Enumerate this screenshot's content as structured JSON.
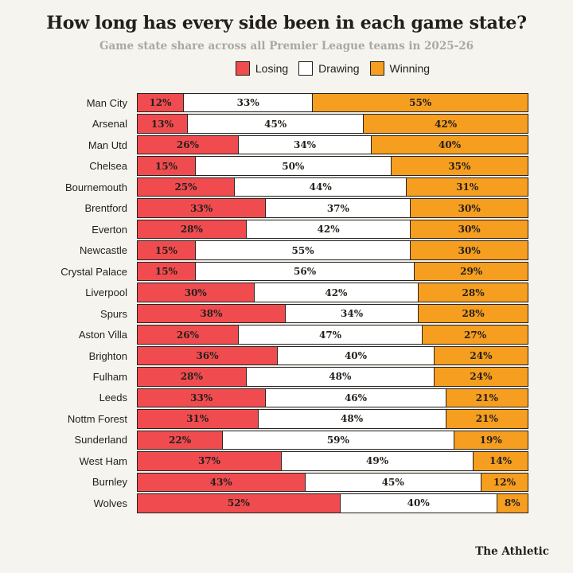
{
  "page": {
    "background": "#F5F4EE"
  },
  "header": {
    "title": "How long has every side been in each game state?",
    "subtitle": "Game state share across all Premier League teams in 2025-26"
  },
  "legend": {
    "items": [
      {
        "label": "Losing",
        "color": "#F04C50"
      },
      {
        "label": "Drawing",
        "color": "#FFFFFF"
      },
      {
        "label": "Winning",
        "color": "#F59E1F"
      }
    ]
  },
  "footer": {
    "brand": "The Athletic"
  },
  "chart_data": {
    "type": "bar",
    "stacked": true,
    "orientation": "horizontal",
    "title": "How long has every side been in each game state?",
    "subtitle": "Game state share across all Premier League teams in 2025-26",
    "value_suffix": "%",
    "xlim": [
      0,
      100
    ],
    "grid": false,
    "legend_position": "top",
    "categories": [
      "Man City",
      "Arsenal",
      "Man Utd",
      "Chelsea",
      "Bournemouth",
      "Brentford",
      "Everton",
      "Newcastle",
      "Crystal Palace",
      "Liverpool",
      "Spurs",
      "Aston Villa",
      "Brighton",
      "Fulham",
      "Leeds",
      "Nottm Forest",
      "Sunderland",
      "West Ham",
      "Burnley",
      "Wolves"
    ],
    "series": [
      {
        "name": "Losing",
        "color": "#F04C50",
        "text_color": "#231F1C",
        "values": [
          12,
          13,
          26,
          15,
          25,
          33,
          28,
          15,
          15,
          30,
          38,
          26,
          36,
          28,
          33,
          31,
          22,
          37,
          43,
          52
        ]
      },
      {
        "name": "Drawing",
        "color": "#FFFFFF",
        "text_color": "#231F1C",
        "values": [
          33,
          45,
          34,
          50,
          44,
          37,
          42,
          55,
          56,
          42,
          34,
          47,
          40,
          48,
          46,
          48,
          59,
          49,
          45,
          40
        ]
      },
      {
        "name": "Winning",
        "color": "#F59E1F",
        "text_color": "#231F1C",
        "values": [
          55,
          42,
          40,
          35,
          31,
          30,
          30,
          30,
          29,
          28,
          28,
          27,
          24,
          24,
          21,
          21,
          19,
          14,
          12,
          8
        ]
      }
    ]
  }
}
